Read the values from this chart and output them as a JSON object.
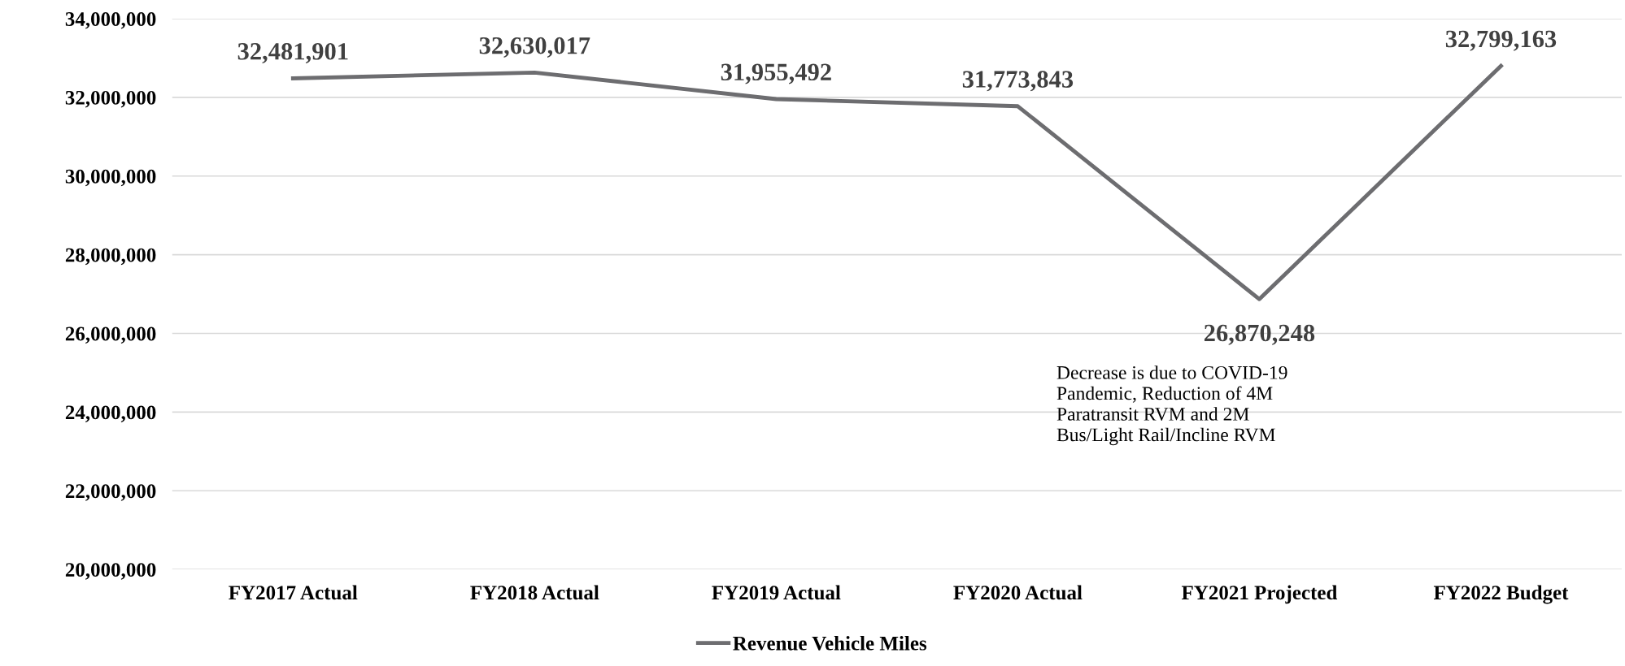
{
  "chart_data": {
    "type": "line",
    "categories": [
      "FY2017 Actual",
      "FY2018 Actual",
      "FY2019 Actual",
      "FY2020 Actual",
      "FY2021 Projected",
      "FY2022 Budget"
    ],
    "series": [
      {
        "name": "Revenue Vehicle Miles",
        "color": "#6d6d70",
        "values": [
          32481901,
          32630017,
          31955492,
          31773843,
          26870248,
          32799163
        ],
        "value_labels": [
          "32,481,901",
          "32,630,017",
          "31,955,492",
          "31,773,843",
          "26,870,248",
          "32,799,163"
        ]
      }
    ],
    "ylim": [
      20000000,
      34000000
    ],
    "yticks": [
      {
        "value": 20000000,
        "label": "20,000,000"
      },
      {
        "value": 22000000,
        "label": "22,000,000"
      },
      {
        "value": 24000000,
        "label": "24,000,000"
      },
      {
        "value": 26000000,
        "label": "26,000,000"
      },
      {
        "value": 28000000,
        "label": "28,000,000"
      },
      {
        "value": 30000000,
        "label": "30,000,000"
      },
      {
        "value": 32000000,
        "label": "32,000,000"
      },
      {
        "value": 34000000,
        "label": "34,000,000"
      }
    ],
    "grid": "y",
    "legend": "bottom",
    "marker": "none",
    "line_style": "solid",
    "annotations": [
      "Decrease is due to COVID-19\nPandemic, Reduction of 4M\nParatransit RVM and 2M\nBus/Light Rail/Incline RVM"
    ]
  }
}
